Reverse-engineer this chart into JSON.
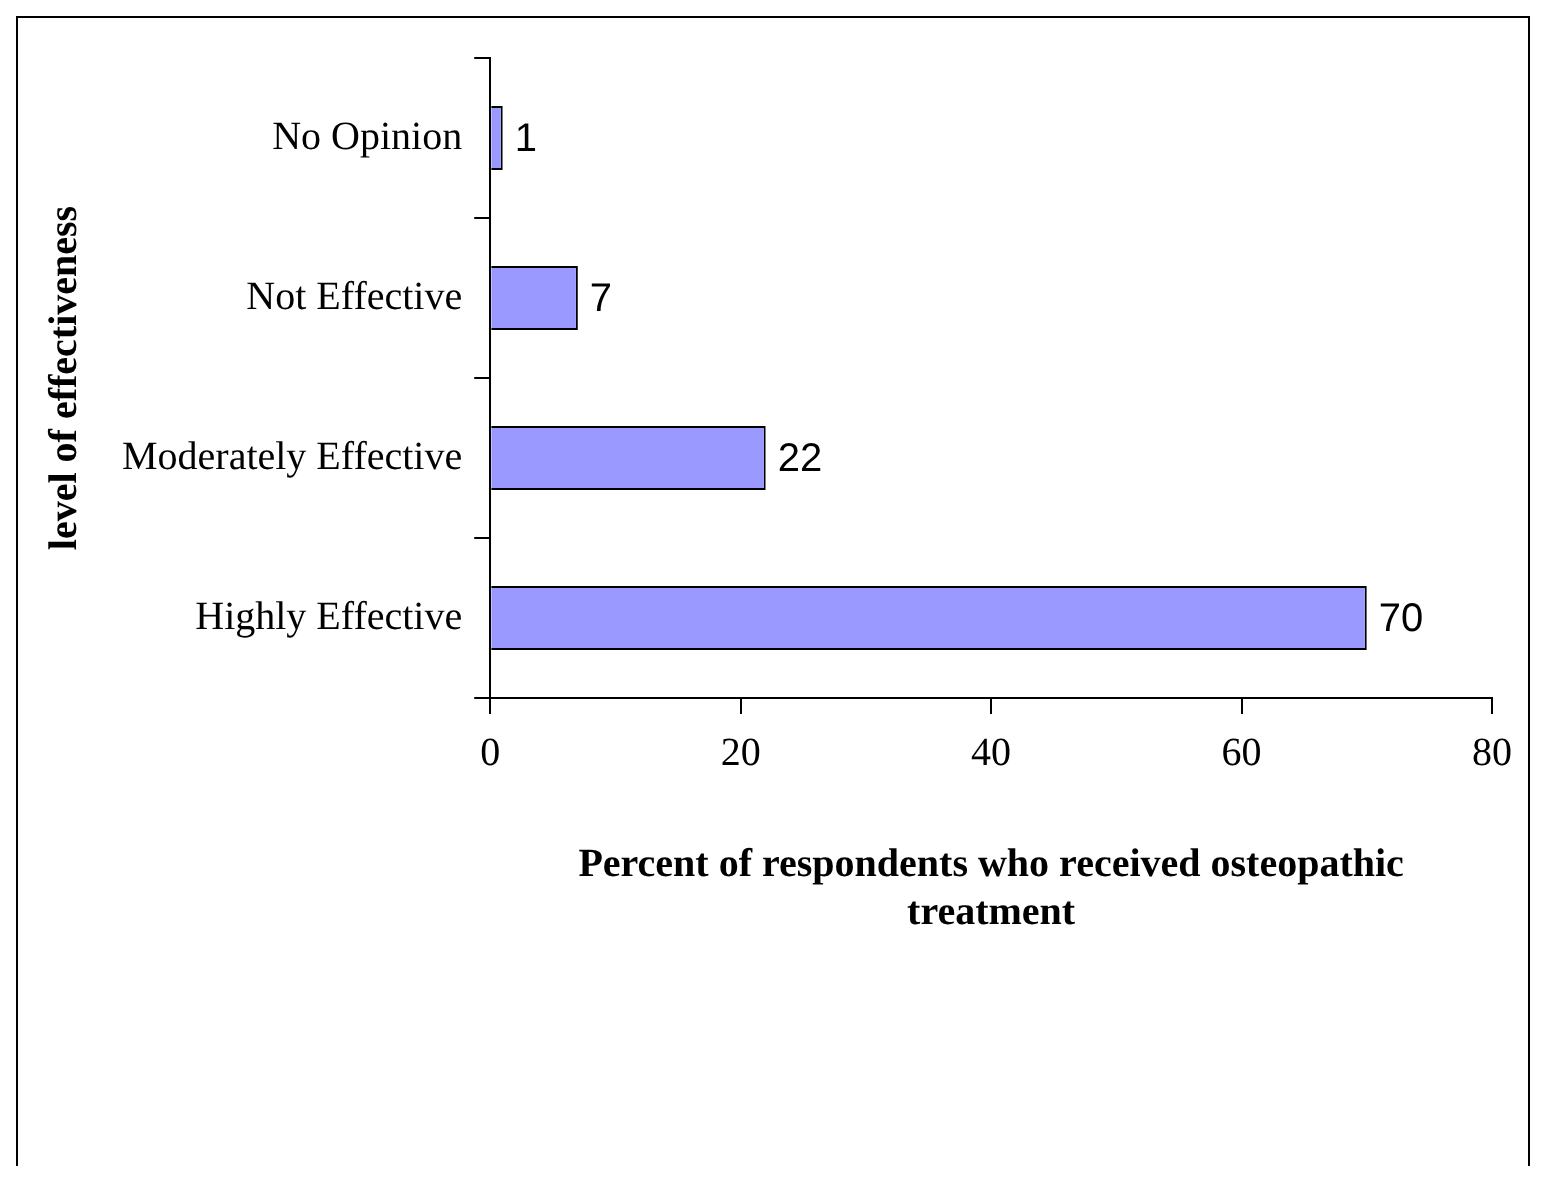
{
  "chart_data": {
    "type": "bar",
    "orientation": "horizontal",
    "xlabel": "Percent of respondents who received osteopathic treatment",
    "ylabel": "level of effectiveness",
    "categories": [
      "No Opinion",
      "Not Effective",
      "Moderately Effective",
      "Highly Effective"
    ],
    "values": [
      1,
      7,
      22,
      70
    ],
    "color": "#9999ff",
    "xlim": [
      0,
      80
    ],
    "xticks": [
      0,
      20,
      40,
      60,
      80
    ],
    "grid": false,
    "legend": false,
    "data_labels": true
  }
}
